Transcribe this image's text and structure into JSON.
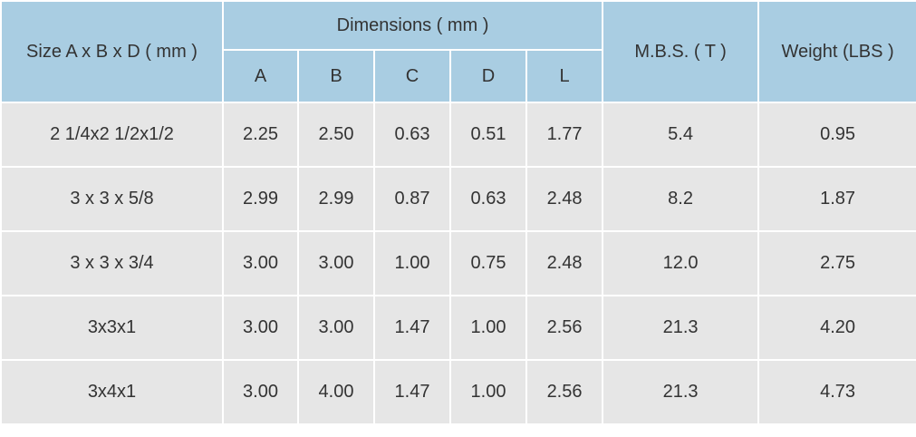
{
  "table": {
    "header": {
      "size": "Size A x B x D ( mm )",
      "dimensions": "Dimensions ( mm )",
      "sub": [
        "A",
        "B",
        "C",
        "D",
        "L"
      ],
      "mbs": "M.B.S. ( T )",
      "weight": "Weight (LBS )"
    },
    "rows": [
      [
        "2 1/4x2 1/2x1/2",
        "2.25",
        "2.50",
        "0.63",
        "0.51",
        "1.77",
        "5.4",
        "0.95"
      ],
      [
        "3 x 3 x 5/8",
        "2.99",
        "2.99",
        "0.87",
        "0.63",
        "2.48",
        "8.2",
        "1.87"
      ],
      [
        "3 x 3 x 3/4",
        "3.00",
        "3.00",
        "1.00",
        "0.75",
        "2.48",
        "12.0",
        "2.75"
      ],
      [
        "3x3x1",
        "3.00",
        "3.00",
        "1.47",
        "1.00",
        "2.56",
        "21.3",
        "4.20"
      ],
      [
        "3x4x1",
        "3.00",
        "4.00",
        "1.47",
        "1.00",
        "2.56",
        "21.3",
        "4.73"
      ]
    ]
  }
}
